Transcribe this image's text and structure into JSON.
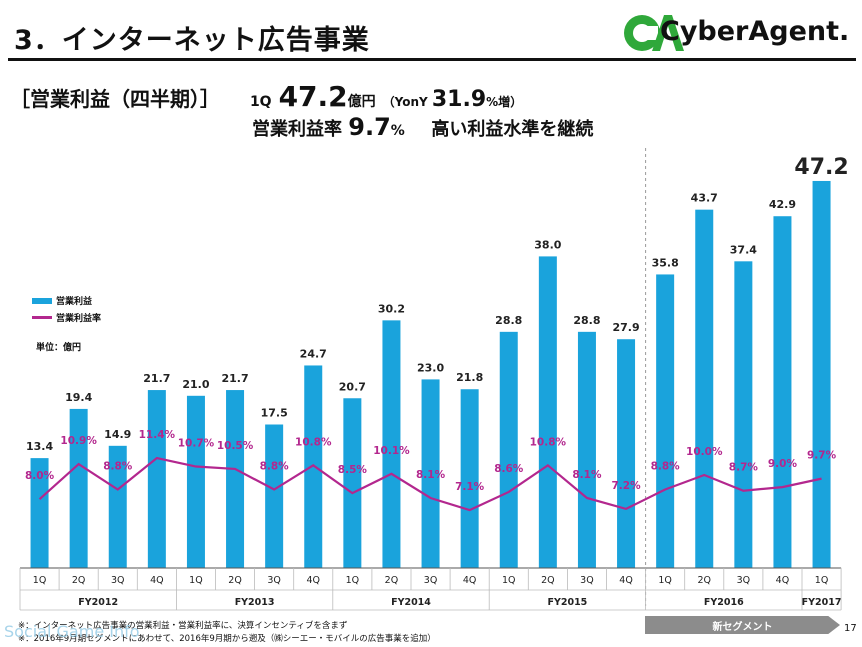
{
  "header": {
    "title": "3．インターネット広告事業",
    "logo_mark": "CA",
    "logo_text": "CyberAgent."
  },
  "summary": {
    "label": "［営業利益（四半期）］",
    "quarter": "1Q",
    "value": "47.2",
    "value_unit": "億円",
    "yoy_open": "（YonY ",
    "yoy_value": "31.9",
    "yoy_unit": "%増",
    "yoy_close": "）",
    "margin_label": "営業利益率",
    "margin_value": "9.7",
    "margin_unit": "%",
    "margin_comment": "高い利益水準を継続"
  },
  "legend": {
    "bar_label": "営業利益",
    "line_label": "営業利益率",
    "unit_label": "単位：億円"
  },
  "colors": {
    "bar": "#1aa3dc",
    "line": "#b3278e",
    "axis": "#555555"
  },
  "chart_data": {
    "type": "bar",
    "categories": [
      "1Q",
      "2Q",
      "3Q",
      "4Q",
      "1Q",
      "2Q",
      "3Q",
      "4Q",
      "1Q",
      "2Q",
      "3Q",
      "4Q",
      "1Q",
      "2Q",
      "3Q",
      "4Q",
      "1Q",
      "2Q",
      "3Q",
      "4Q",
      "1Q"
    ],
    "fiscal_years": [
      {
        "label": "FY2012",
        "count": 4
      },
      {
        "label": "FY2013",
        "count": 4
      },
      {
        "label": "FY2014",
        "count": 4
      },
      {
        "label": "FY2015",
        "count": 4
      },
      {
        "label": "FY2016",
        "count": 4
      },
      {
        "label": "FY2017",
        "count": 1
      }
    ],
    "series": [
      {
        "name": "営業利益",
        "type": "bar",
        "values": [
          13.4,
          19.4,
          14.9,
          21.7,
          21.0,
          21.7,
          17.5,
          24.7,
          20.7,
          30.2,
          23.0,
          21.8,
          28.8,
          38.0,
          28.8,
          27.9,
          35.8,
          43.7,
          37.4,
          42.9,
          47.2
        ],
        "labels": [
          "13.4",
          "19.4",
          "14.9",
          "21.7",
          "21.0",
          "21.7",
          "17.5",
          "24.7",
          "20.7",
          "30.2",
          "23.0",
          "21.8",
          "28.8",
          "38.0",
          "28.8",
          "27.9",
          "35.8",
          "43.7",
          "37.4",
          "42.9",
          "47.2"
        ]
      },
      {
        "name": "営業利益率",
        "type": "line",
        "values": [
          8.0,
          10.9,
          8.8,
          11.4,
          10.7,
          10.5,
          8.8,
          10.8,
          8.5,
          10.1,
          8.1,
          7.1,
          8.6,
          10.8,
          8.1,
          7.2,
          8.8,
          10.0,
          8.7,
          9.0,
          9.7
        ],
        "labels": [
          "8.0%",
          "10.9%",
          "8.8%",
          "11.4%",
          "10.7%",
          "10.5%",
          "8.8%",
          "10.8%",
          "8.5%",
          "10.1%",
          "8.1%",
          "7.1%",
          "8.6%",
          "10.8%",
          "8.1%",
          "7.2%",
          "8.8%",
          "10.0%",
          "8.7%",
          "9.0%",
          "9.7%"
        ]
      }
    ],
    "highlight_last_label": true,
    "new_segment_from_index": 16
  },
  "new_segment_label": "新セグメント",
  "footnotes": [
    "※：インターネット広告事業の営業利益・営業利益率に、決算インセンティブを含まず",
    "※：2016年9月期セグメントにあわせて、2016年9月期から遡及（㈱シーエー・モバイルの広告事業を追加）"
  ],
  "page_number": "17",
  "watermark": "Social Game Info"
}
